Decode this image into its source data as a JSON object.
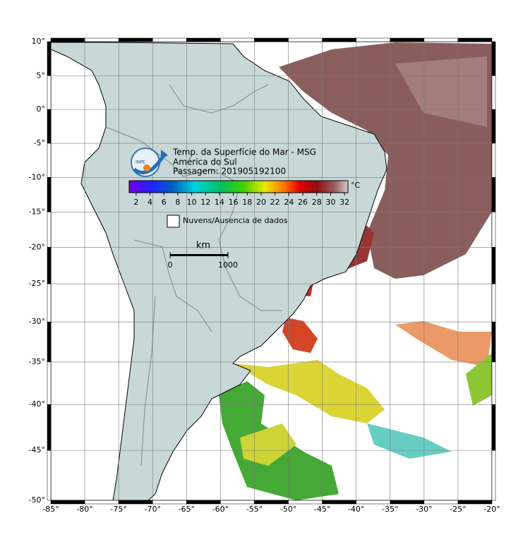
{
  "map": {
    "title_lines": [
      "Temp. da Superfície do Mar - MSG",
      "América do Sul",
      "Passagem: 201905192100"
    ],
    "logo_text": "INPE",
    "xlim": [
      -85,
      -20
    ],
    "ylim": [
      -50,
      10
    ],
    "xticks": [
      {
        "value": -85,
        "label": "-85°"
      },
      {
        "value": -80,
        "label": "-80°"
      },
      {
        "value": -75,
        "label": "-75°"
      },
      {
        "value": -70,
        "label": "-70°"
      },
      {
        "value": -65,
        "label": "-65°"
      },
      {
        "value": -60,
        "label": "-60°"
      },
      {
        "value": -55,
        "label": "-55°"
      },
      {
        "value": -50,
        "label": "-50°"
      },
      {
        "value": -45,
        "label": "-45°"
      },
      {
        "value": -40,
        "label": "-40°"
      },
      {
        "value": -35,
        "label": "-35°"
      },
      {
        "value": -30,
        "label": "-30°"
      },
      {
        "value": -25,
        "label": "-25°"
      },
      {
        "value": -20,
        "label": "-20°"
      }
    ],
    "yticks": [
      {
        "value": 10,
        "label": "10°"
      },
      {
        "value": 5,
        "label": "5°"
      },
      {
        "value": 0,
        "label": "0°"
      },
      {
        "value": -5,
        "label": "-5°"
      },
      {
        "value": -10,
        "label": "-10°"
      },
      {
        "value": -15,
        "label": "-15°"
      },
      {
        "value": -20,
        "label": "-20°"
      },
      {
        "value": -25,
        "label": "-25°"
      },
      {
        "value": -30,
        "label": "-30°"
      },
      {
        "value": -35,
        "label": "-35°"
      },
      {
        "value": -40,
        "label": "-40°"
      },
      {
        "value": -45,
        "label": "-45°"
      },
      {
        "value": -50,
        "label": "-50°"
      }
    ],
    "projection": "mercator",
    "grid": true,
    "colorbar": {
      "unit": "°C",
      "clim": [
        1,
        32.5
      ],
      "ticks": [
        2,
        4,
        6,
        8,
        10,
        12,
        14,
        16,
        18,
        20,
        22,
        24,
        26,
        28,
        30,
        32
      ]
    },
    "no_data_label": "Nuvens/Ausencia de dados",
    "scalebar": {
      "unit": "km",
      "ticks": [
        0,
        1000
      ]
    }
  }
}
